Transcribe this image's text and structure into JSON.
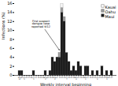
{
  "chart_data": {
    "type": "bar",
    "stacked": true,
    "xlabel": "Weekly interval beginning",
    "ylabel": "Infections (%)",
    "categories": [
      "May\n20",
      "27",
      "Jun\n3",
      "10",
      "17",
      "24",
      "Jul\n1",
      "8",
      "15",
      "22",
      "29",
      "Aug\n5",
      "12",
      "19",
      "26",
      "Sep\n2",
      "9",
      "16",
      "23",
      "30",
      "Oct\n7",
      "14",
      "21",
      "28",
      "Nov\n4",
      "11",
      "18",
      "25",
      "Dec\n2",
      "9",
      "16",
      "23",
      "30",
      "Jan\n6",
      "13",
      "20",
      "27",
      "Feb\n3",
      "10",
      "17"
    ],
    "series": [
      {
        "name": "Maui",
        "color": "#1a1a1a",
        "values": [
          1,
          1,
          0,
          0,
          0,
          0,
          1,
          0,
          0,
          0,
          0,
          1,
          0,
          1,
          4,
          3,
          4,
          4,
          14,
          12,
          5,
          3,
          1,
          2,
          1,
          3,
          2,
          0,
          2,
          2,
          0,
          1,
          0,
          1,
          0,
          2,
          0,
          1,
          0,
          1
        ]
      },
      {
        "name": "Oahu",
        "color": "#a0a0a0",
        "values": [
          0,
          0,
          0,
          0,
          0,
          0,
          0,
          0,
          0,
          0,
          0,
          0,
          0,
          0,
          0,
          0,
          0,
          1,
          1,
          1,
          0,
          0,
          0,
          0,
          0,
          0,
          0,
          0,
          0,
          0,
          0,
          0,
          0,
          0,
          0,
          0,
          0,
          0,
          0,
          0
        ]
      },
      {
        "name": "Kauai",
        "color": "#ffffff",
        "values": [
          0,
          0,
          0,
          0,
          0,
          0,
          0,
          0,
          0,
          0,
          0,
          0,
          0,
          0,
          0,
          0,
          0,
          0,
          1,
          0,
          0,
          0,
          0,
          0,
          0,
          0,
          0,
          0,
          0,
          0,
          0,
          0,
          0,
          0,
          0,
          0,
          0,
          0,
          0,
          0
        ]
      }
    ],
    "ylim": [
      0,
      16
    ],
    "yticks": [
      0,
      2,
      4,
      6,
      8,
      10,
      12,
      14,
      16
    ],
    "legend": "upper right",
    "grid": false,
    "annotations": [
      {
        "text": "First suspect\ndengue case\nreported 9/12",
        "x": 17,
        "y": 5.5,
        "text_x": 9,
        "text_y": 11.5
      }
    ]
  }
}
